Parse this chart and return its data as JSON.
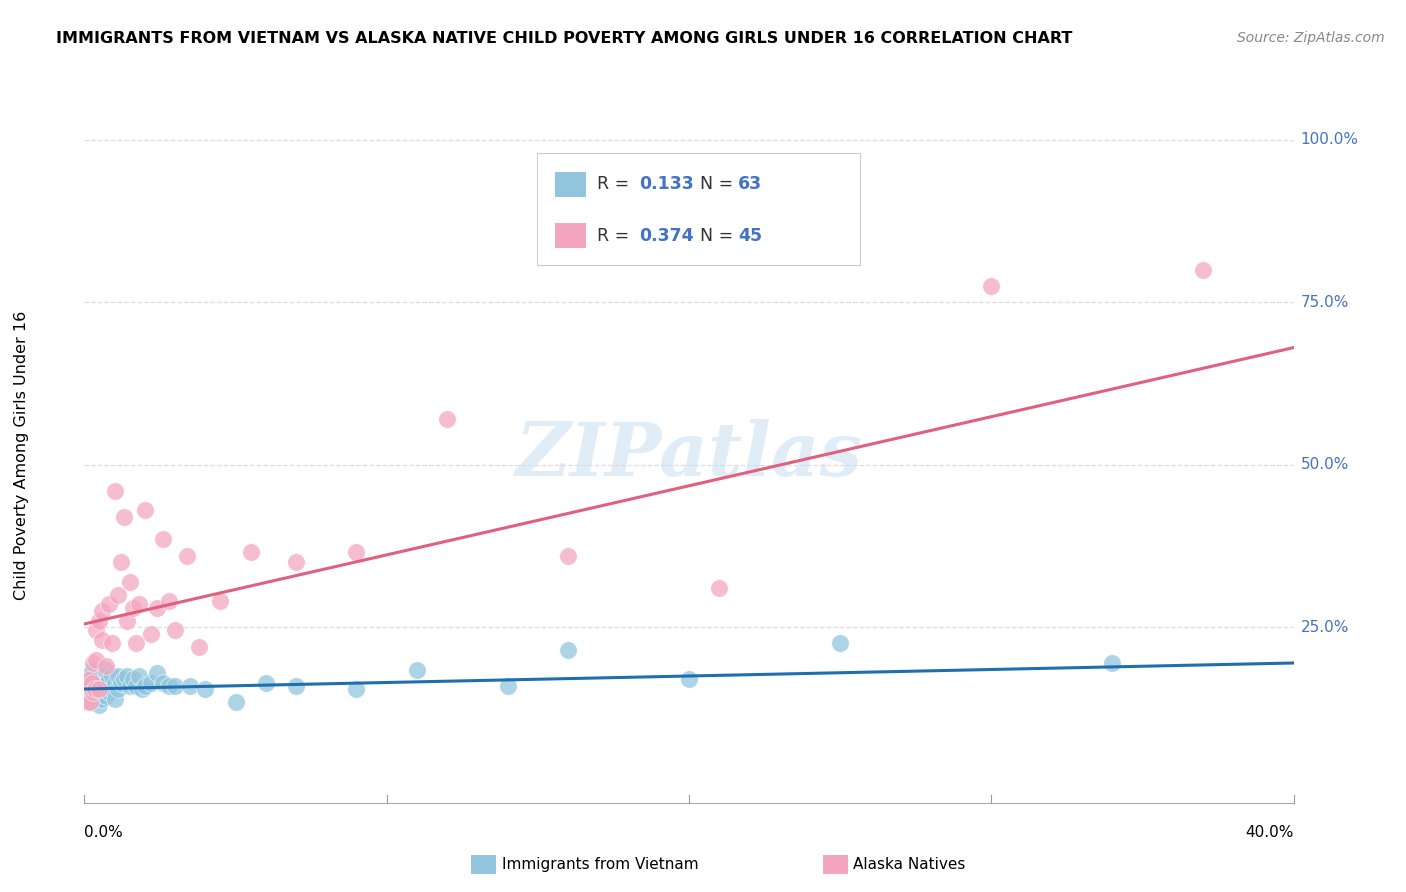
{
  "title": "IMMIGRANTS FROM VIETNAM VS ALASKA NATIVE CHILD POVERTY AMONG GIRLS UNDER 16 CORRELATION CHART",
  "source": "Source: ZipAtlas.com",
  "ylabel": "Child Poverty Among Girls Under 16",
  "xlim": [
    0.0,
    0.4
  ],
  "ylim": [
    -0.02,
    1.05
  ],
  "color_blue": "#92c5de",
  "color_pink": "#f4a6c0",
  "line_blue": "#1f6faf",
  "line_pink": "#e0607e",
  "tick_color": "#4472c4",
  "watermark": "ZIPatlas",
  "legend_R1_val": "0.133",
  "legend_N1_val": "63",
  "legend_R2_val": "0.374",
  "legend_N2_val": "45",
  "legend_label1": "Immigrants from Vietnam",
  "legend_label2": "Alaska Natives",
  "blue_trend_x": [
    0.0,
    0.4
  ],
  "blue_trend_y": [
    0.155,
    0.195
  ],
  "pink_trend_x": [
    0.0,
    0.4
  ],
  "pink_trend_y": [
    0.255,
    0.68
  ],
  "blue_x": [
    0.0005,
    0.001,
    0.001,
    0.0015,
    0.0015,
    0.002,
    0.002,
    0.002,
    0.0025,
    0.0025,
    0.003,
    0.003,
    0.003,
    0.003,
    0.0035,
    0.0035,
    0.004,
    0.004,
    0.0045,
    0.0045,
    0.005,
    0.005,
    0.005,
    0.006,
    0.006,
    0.006,
    0.007,
    0.007,
    0.007,
    0.008,
    0.008,
    0.009,
    0.009,
    0.01,
    0.01,
    0.011,
    0.011,
    0.012,
    0.013,
    0.014,
    0.015,
    0.016,
    0.017,
    0.018,
    0.019,
    0.02,
    0.022,
    0.024,
    0.026,
    0.028,
    0.03,
    0.035,
    0.04,
    0.05,
    0.06,
    0.07,
    0.09,
    0.11,
    0.14,
    0.16,
    0.2,
    0.25,
    0.34
  ],
  "blue_y": [
    0.155,
    0.16,
    0.145,
    0.17,
    0.135,
    0.155,
    0.145,
    0.175,
    0.16,
    0.185,
    0.14,
    0.155,
    0.17,
    0.185,
    0.15,
    0.165,
    0.145,
    0.16,
    0.155,
    0.175,
    0.13,
    0.15,
    0.17,
    0.14,
    0.155,
    0.175,
    0.145,
    0.165,
    0.185,
    0.15,
    0.17,
    0.155,
    0.175,
    0.14,
    0.165,
    0.155,
    0.175,
    0.165,
    0.17,
    0.175,
    0.16,
    0.17,
    0.16,
    0.175,
    0.155,
    0.16,
    0.165,
    0.18,
    0.165,
    0.16,
    0.16,
    0.16,
    0.155,
    0.135,
    0.165,
    0.16,
    0.155,
    0.185,
    0.16,
    0.215,
    0.17,
    0.225,
    0.195
  ],
  "pink_x": [
    0.0005,
    0.001,
    0.001,
    0.0015,
    0.002,
    0.002,
    0.0025,
    0.003,
    0.003,
    0.0035,
    0.004,
    0.004,
    0.005,
    0.005,
    0.006,
    0.006,
    0.007,
    0.008,
    0.009,
    0.01,
    0.011,
    0.012,
    0.013,
    0.014,
    0.015,
    0.016,
    0.017,
    0.018,
    0.02,
    0.022,
    0.024,
    0.026,
    0.028,
    0.03,
    0.034,
    0.038,
    0.045,
    0.055,
    0.07,
    0.09,
    0.12,
    0.16,
    0.21,
    0.3,
    0.37
  ],
  "pink_y": [
    0.155,
    0.135,
    0.155,
    0.16,
    0.17,
    0.135,
    0.165,
    0.15,
    0.195,
    0.155,
    0.245,
    0.2,
    0.26,
    0.155,
    0.23,
    0.275,
    0.19,
    0.285,
    0.225,
    0.46,
    0.3,
    0.35,
    0.42,
    0.26,
    0.32,
    0.28,
    0.225,
    0.285,
    0.43,
    0.24,
    0.28,
    0.385,
    0.29,
    0.245,
    0.36,
    0.22,
    0.29,
    0.365,
    0.35,
    0.365,
    0.57,
    0.36,
    0.31,
    0.775,
    0.8
  ]
}
